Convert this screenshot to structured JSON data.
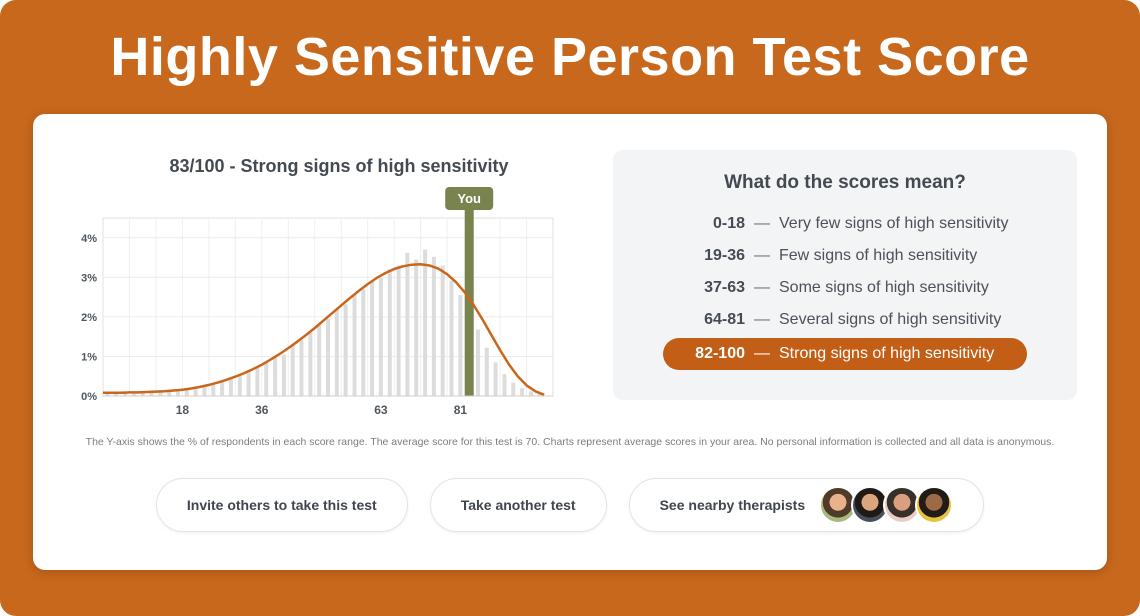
{
  "page": {
    "title": "Highly Sensitive Person Test Score"
  },
  "colors": {
    "background_orange": "#c7681c",
    "accent_orange": "#c25e16",
    "curve_orange": "#c9661a",
    "marker_olive": "#78834e",
    "bar_gray": "#dcdcdc",
    "panel_gray": "#f3f4f6",
    "text_dark": "#434a52"
  },
  "chart": {
    "title": "83/100 - Strong signs of high sensitivity",
    "marker_label": "You"
  },
  "chart_data": {
    "type": "bar",
    "title": "83/100 - Strong signs of high sensitivity",
    "ylabel": "% of respondents in each score range",
    "xlim": [
      0,
      102
    ],
    "ylim": [
      0,
      4.5
    ],
    "grid": true,
    "x_tick_labels": [
      18,
      36,
      63,
      81
    ],
    "y_tick_labels": [
      "0%",
      "1%",
      "2%",
      "3%",
      "4%"
    ],
    "bar_x_start": 1,
    "bar_x_step": 2,
    "bar_values": [
      0.06,
      0.05,
      0.07,
      0.06,
      0.09,
      0.08,
      0.11,
      0.12,
      0.15,
      0.17,
      0.21,
      0.26,
      0.3,
      0.37,
      0.44,
      0.53,
      0.61,
      0.73,
      0.84,
      0.97,
      1.05,
      1.3,
      1.42,
      1.6,
      1.82,
      1.95,
      2.2,
      2.32,
      2.58,
      2.7,
      2.92,
      2.98,
      3.2,
      3.3,
      3.62,
      3.45,
      3.7,
      3.52,
      3.3,
      2.92,
      2.55,
      2.1,
      1.68,
      1.22,
      0.85,
      0.55,
      0.34,
      0.2,
      0.12,
      0.06
    ],
    "curve": {
      "x_start": 0,
      "x_step": 2,
      "values": [
        0.08,
        0.08,
        0.08,
        0.09,
        0.09,
        0.1,
        0.11,
        0.12,
        0.14,
        0.16,
        0.19,
        0.23,
        0.28,
        0.34,
        0.41,
        0.49,
        0.58,
        0.68,
        0.79,
        0.92,
        1.06,
        1.21,
        1.37,
        1.54,
        1.72,
        1.91,
        2.1,
        2.29,
        2.48,
        2.66,
        2.83,
        2.98,
        3.11,
        3.21,
        3.28,
        3.32,
        3.33,
        3.3,
        3.22,
        3.08,
        2.88,
        2.62,
        2.3,
        1.94,
        1.55,
        1.16,
        0.8,
        0.5,
        0.27,
        0.12,
        0.03
      ]
    },
    "marker": {
      "label": "You",
      "x": 83
    }
  },
  "legend": {
    "title": "What do the scores mean?",
    "rows": [
      {
        "range": "0-18",
        "dash": "—",
        "text": "Very few signs of high sensitivity",
        "highlight": false
      },
      {
        "range": "19-36",
        "dash": "—",
        "text": "Few signs of high sensitivity",
        "highlight": false
      },
      {
        "range": "37-63",
        "dash": "—",
        "text": "Some signs of high sensitivity",
        "highlight": false
      },
      {
        "range": "64-81",
        "dash": "—",
        "text": "Several signs of high sensitivity",
        "highlight": false
      },
      {
        "range": "82-100",
        "dash": "—",
        "text": "Strong signs of high sensitivity",
        "highlight": true
      }
    ]
  },
  "footnote": "The Y-axis shows the % of respondents in each score range. The average score for this test is 70. Charts represent average scores in your area. No personal information is collected and all data is anonymous.",
  "buttons": [
    {
      "label": "Invite others to take this test"
    },
    {
      "label": "Take another test"
    },
    {
      "label": "See nearby therapists"
    }
  ],
  "avatars": [
    {
      "bg": "#a9b87c",
      "skin": "#e9b28a",
      "hair": "#503a2a"
    },
    {
      "bg": "#47505c",
      "skin": "#d9a67e",
      "hair": "#201a17"
    },
    {
      "bg": "#e7cdc5",
      "skin": "#d99f7e",
      "hair": "#38302b"
    },
    {
      "bg": "#e7c33c",
      "skin": "#9c6a45",
      "hair": "#221b18"
    }
  ]
}
